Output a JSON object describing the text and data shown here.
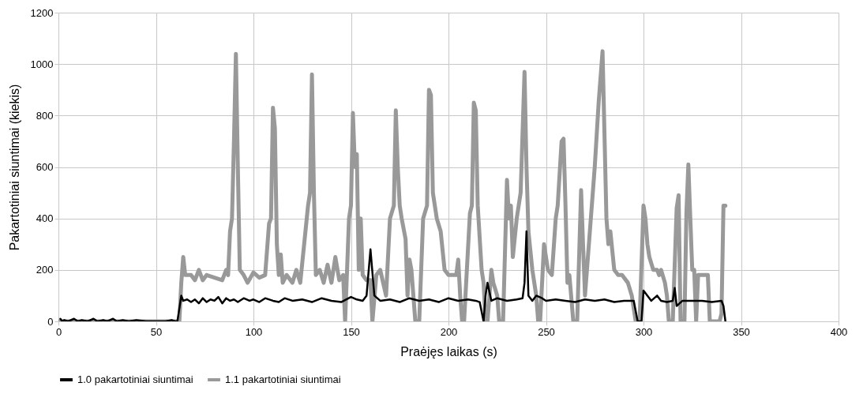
{
  "chart_data": {
    "type": "line",
    "xlabel": "Praėjęs laikas (s)",
    "ylabel": "Pakartotiniai siuntimai (kiekis)",
    "xlim": [
      0,
      400
    ],
    "xticks": [
      0,
      50,
      100,
      150,
      200,
      250,
      300,
      350,
      400
    ],
    "ylim": [
      0,
      1200
    ],
    "yticks": [
      0,
      200,
      400,
      600,
      800,
      1000,
      1200
    ],
    "grid": true,
    "legend": "bottom",
    "marker": "none",
    "line_style": "solid",
    "series": [
      {
        "name": "1.0 pakartotiniai siuntimai",
        "color": "#000000",
        "x": [
          1,
          2,
          3,
          5,
          8,
          10,
          12,
          15,
          18,
          20,
          23,
          25,
          28,
          30,
          33,
          36,
          40,
          45,
          50,
          55,
          58,
          60,
          61,
          62,
          63,
          64,
          66,
          68,
          70,
          72,
          74,
          76,
          78,
          80,
          82,
          84,
          86,
          88,
          90,
          92,
          95,
          98,
          100,
          103,
          106,
          110,
          113,
          116,
          120,
          125,
          130,
          135,
          140,
          145,
          150,
          153,
          156,
          158,
          160,
          162,
          165,
          170,
          175,
          180,
          185,
          190,
          195,
          200,
          205,
          210,
          214,
          216,
          218,
          219,
          220,
          222,
          225,
          230,
          235,
          238,
          239,
          240,
          241,
          243,
          245,
          248,
          250,
          255,
          260,
          265,
          270,
          275,
          280,
          285,
          290,
          295,
          296,
          297,
          299,
          300,
          302,
          304,
          307,
          309,
          312,
          315,
          316,
          317,
          320,
          325,
          330,
          335,
          340,
          341,
          342
        ],
        "values": [
          10,
          0,
          5,
          0,
          10,
          0,
          5,
          0,
          10,
          0,
          5,
          0,
          10,
          0,
          5,
          0,
          5,
          0,
          0,
          0,
          5,
          0,
          0,
          50,
          100,
          80,
          85,
          75,
          85,
          70,
          90,
          75,
          85,
          80,
          95,
          70,
          90,
          80,
          85,
          75,
          90,
          80,
          85,
          75,
          90,
          80,
          75,
          90,
          80,
          85,
          75,
          90,
          80,
          75,
          95,
          85,
          80,
          100,
          280,
          100,
          80,
          85,
          75,
          90,
          80,
          85,
          75,
          90,
          80,
          85,
          80,
          75,
          0,
          100,
          150,
          80,
          90,
          80,
          85,
          90,
          150,
          350,
          100,
          80,
          100,
          90,
          80,
          85,
          80,
          75,
          85,
          80,
          85,
          75,
          80,
          80,
          40,
          0,
          0,
          120,
          100,
          80,
          100,
          80,
          75,
          80,
          130,
          60,
          80,
          80,
          80,
          75,
          80,
          60,
          0
        ]
      },
      {
        "name": "1.1 pakartotiniai siuntimai",
        "color": "#999999",
        "x": [
          0,
          60,
          62,
          63,
          64,
          65,
          68,
          70,
          72,
          74,
          76,
          80,
          84,
          86,
          87,
          88,
          89,
          90,
          91,
          92,
          93,
          95,
          97,
          100,
          103,
          106,
          108,
          109,
          110,
          111,
          112,
          113,
          114,
          115,
          117,
          120,
          122,
          124,
          126,
          128,
          129,
          130,
          131,
          132,
          134,
          136,
          138,
          140,
          142,
          144,
          146,
          147,
          149,
          150,
          151,
          152,
          153,
          154,
          155,
          156,
          158,
          160,
          161,
          163,
          165,
          168,
          170,
          172,
          173,
          174,
          175,
          176,
          178,
          179,
          180,
          181,
          183,
          185,
          187,
          189,
          190,
          191,
          192,
          194,
          196,
          198,
          200,
          202,
          204,
          205,
          206,
          207,
          208,
          211,
          212,
          213,
          214,
          215,
          217,
          218,
          219,
          220,
          222,
          223,
          225,
          226,
          228,
          230,
          231,
          232,
          233,
          235,
          237,
          239,
          240,
          241,
          243,
          245,
          246,
          247,
          249,
          251,
          253,
          255,
          256,
          258,
          259,
          260,
          261,
          262,
          264,
          266,
          268,
          269,
          270,
          272,
          273,
          275,
          277,
          279,
          281,
          282,
          283,
          285,
          287,
          289,
          292,
          294,
          296,
          298,
          300,
          301,
          302,
          303,
          305,
          307,
          308,
          309,
          311,
          312,
          313,
          315,
          317,
          318,
          319,
          321,
          322,
          323,
          324,
          325,
          326,
          327,
          328,
          332,
          333,
          334,
          337,
          339,
          340,
          341,
          342
        ],
        "values": [
          0,
          0,
          0,
          150,
          250,
          180,
          180,
          160,
          200,
          160,
          180,
          170,
          160,
          200,
          180,
          350,
          400,
          700,
          1040,
          600,
          200,
          180,
          150,
          190,
          170,
          180,
          380,
          400,
          830,
          750,
          300,
          180,
          260,
          150,
          180,
          150,
          200,
          150,
          300,
          450,
          500,
          960,
          500,
          180,
          200,
          150,
          220,
          150,
          250,
          160,
          180,
          0,
          400,
          450,
          810,
          600,
          650,
          200,
          400,
          180,
          160,
          160,
          0,
          180,
          200,
          100,
          400,
          450,
          820,
          600,
          450,
          400,
          320,
          100,
          240,
          200,
          0,
          0,
          400,
          450,
          900,
          880,
          500,
          400,
          350,
          200,
          180,
          180,
          180,
          240,
          100,
          0,
          0,
          420,
          450,
          850,
          820,
          450,
          200,
          150,
          0,
          0,
          200,
          150,
          100,
          0,
          0,
          550,
          400,
          450,
          250,
          400,
          500,
          970,
          600,
          350,
          200,
          100,
          0,
          0,
          300,
          200,
          180,
          400,
          450,
          700,
          710,
          450,
          150,
          180,
          0,
          0,
          510,
          300,
          100,
          300,
          400,
          600,
          850,
          1050,
          400,
          300,
          350,
          200,
          180,
          180,
          150,
          100,
          0,
          0,
          450,
          400,
          300,
          250,
          200,
          200,
          180,
          200,
          150,
          100,
          0,
          0,
          440,
          490,
          0,
          0,
          420,
          610,
          400,
          200,
          200,
          0,
          180,
          180,
          180,
          0,
          0,
          0,
          30,
          450,
          450
        ]
      }
    ]
  }
}
